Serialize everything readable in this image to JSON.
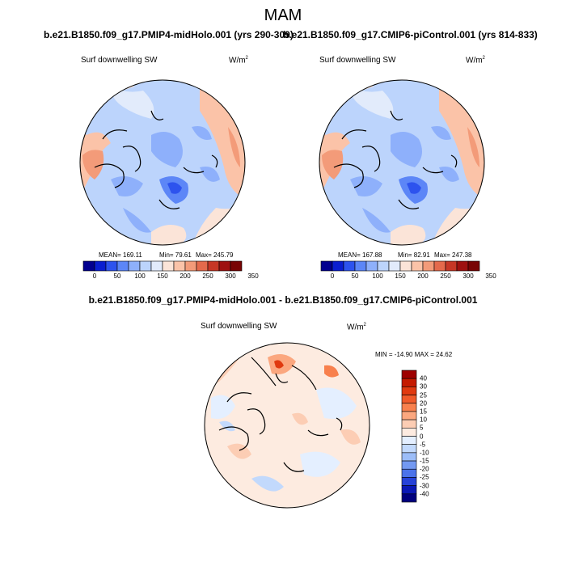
{
  "title": "MAM",
  "panels": [
    {
      "case": "b.e21.B1850.f09_g17.PMIP4-midHolo.001 (yrs 290-309)",
      "variable": "Surf downwelling SW",
      "units": "W/m",
      "units_exp": "2",
      "stats": {
        "mean": "MEAN= 169.11",
        "min": "Min=  79.61",
        "max": "Max= 245.79"
      }
    },
    {
      "case": "b.e21.B1850.f09_g17.CMIP6-piControl.001 (yrs 814-833)",
      "variable": "Surf downwelling SW",
      "units": "W/m",
      "units_exp": "2",
      "stats": {
        "mean": "MEAN= 167.88",
        "min": "Min=  82.91",
        "max": "Max= 247.38"
      }
    }
  ],
  "top_colorbar": {
    "ticks": [
      "0",
      "50",
      "100",
      "150",
      "200",
      "250",
      "300",
      "350"
    ],
    "colors": [
      "#02008f",
      "#0a1ed0",
      "#2d53ee",
      "#5c86f7",
      "#8eb0fb",
      "#bcd4fc",
      "#e2ebfb",
      "#fbe4d8",
      "#fbc3a8",
      "#f39b79",
      "#e46a4c",
      "#c63726",
      "#9e1110",
      "#780404"
    ]
  },
  "difference": {
    "title": "b.e21.B1850.f09_g17.PMIP4-midHolo.001 - b.e21.B1850.f09_g17.CMIP6-piControl.001",
    "variable": "Surf downwelling SW",
    "units": "W/m",
    "units_exp": "2",
    "minmax": "MIN = -14.90 MAX =  24.62",
    "colorbar": {
      "ticks": [
        "40",
        "30",
        "25",
        "20",
        "15",
        "10",
        "5",
        "0",
        "-5",
        "-10",
        "-15",
        "-20",
        "-25",
        "-30",
        "-40"
      ],
      "colors": [
        "#9e0000",
        "#c51b00",
        "#e03a10",
        "#f05a2a",
        "#f8804d",
        "#fba77f",
        "#fccdb4",
        "#fdebe0",
        "#e4efff",
        "#c2d9fc",
        "#9cbdf8",
        "#7399f2",
        "#4c73ea",
        "#2642d8",
        "#0a18b5",
        "#00007e"
      ]
    }
  }
}
